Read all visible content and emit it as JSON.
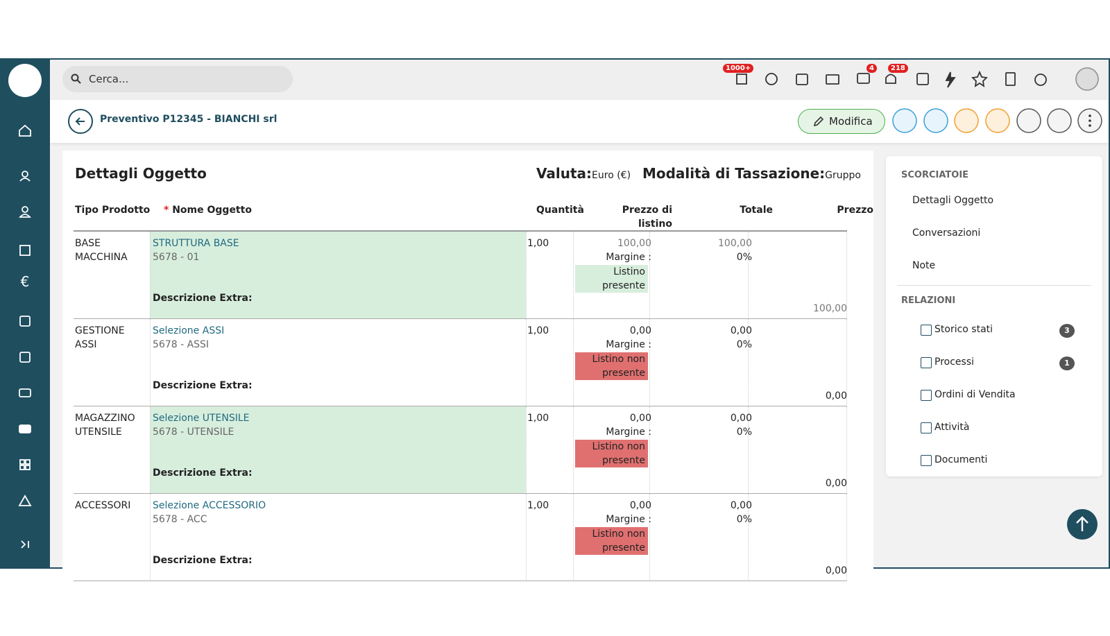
{
  "search_placeholder": "Cerca...",
  "toolbar_badges": [
    "1000+",
    "4",
    "218"
  ],
  "header": {
    "title": "Preventivo P12345 - BIANCHI srl",
    "edit_button": "Modifica"
  },
  "details": {
    "title": "Dettagli Oggetto",
    "currency_label": "Valuta:",
    "currency": "Euro (€)",
    "tax_label": "Modalità di Tassazione:",
    "tax": "Gruppo",
    "required_mark": "*",
    "columns": [
      "Tipo Prodotto",
      "Nome Oggetto",
      "Quantità",
      "Prezzo di listino",
      "Totale",
      "Prezzo"
    ],
    "margin_label": "Margine :",
    "extra_label": "Descrizione Extra:",
    "rows": [
      {
        "type": "BASE MACCHINA",
        "name": "STRUTTURA BASE",
        "code": "5678 - 01",
        "quantity": "1,00",
        "list_price": "100,00",
        "list_status": "Listino presente",
        "total": "100,00",
        "margin": "0%",
        "price": "100,00"
      },
      {
        "type": "GESTIONE ASSI",
        "name": "Selezione ASSI",
        "code": "5678 - ASSI",
        "quantity": "1,00",
        "list_price": "0,00",
        "list_status": "Listino non presente",
        "total": "0,00",
        "margin": "0%",
        "price": "0,00"
      },
      {
        "type": "MAGAZZINO UTENSILE",
        "name": "Selezione UTENSILE",
        "code": "5678 - UTENSILE",
        "quantity": "1,00",
        "list_price": "0,00",
        "list_status": "Listino non presente",
        "total": "0,00",
        "margin": "0%",
        "price": "0,00"
      },
      {
        "type": "ACCESSORI",
        "name": "Selezione ACCESSORIO",
        "code": "5678 - ACC",
        "quantity": "1,00",
        "list_price": "0,00",
        "list_status": "Listino non presente",
        "total": "0,00",
        "margin": "0%",
        "price": "0,00"
      }
    ]
  },
  "shortcuts": {
    "title": "SCORCIATOIE",
    "items": [
      "Dettagli Oggetto",
      "Conversazioni",
      "Note"
    ]
  },
  "relations": {
    "title": "RELAZIONI",
    "items": [
      {
        "label": "Storico stati",
        "count": "3"
      },
      {
        "label": "Processi",
        "count": "1"
      },
      {
        "label": "Ordini di Vendita"
      },
      {
        "label": "Attività"
      },
      {
        "label": "Documenti"
      }
    ]
  }
}
